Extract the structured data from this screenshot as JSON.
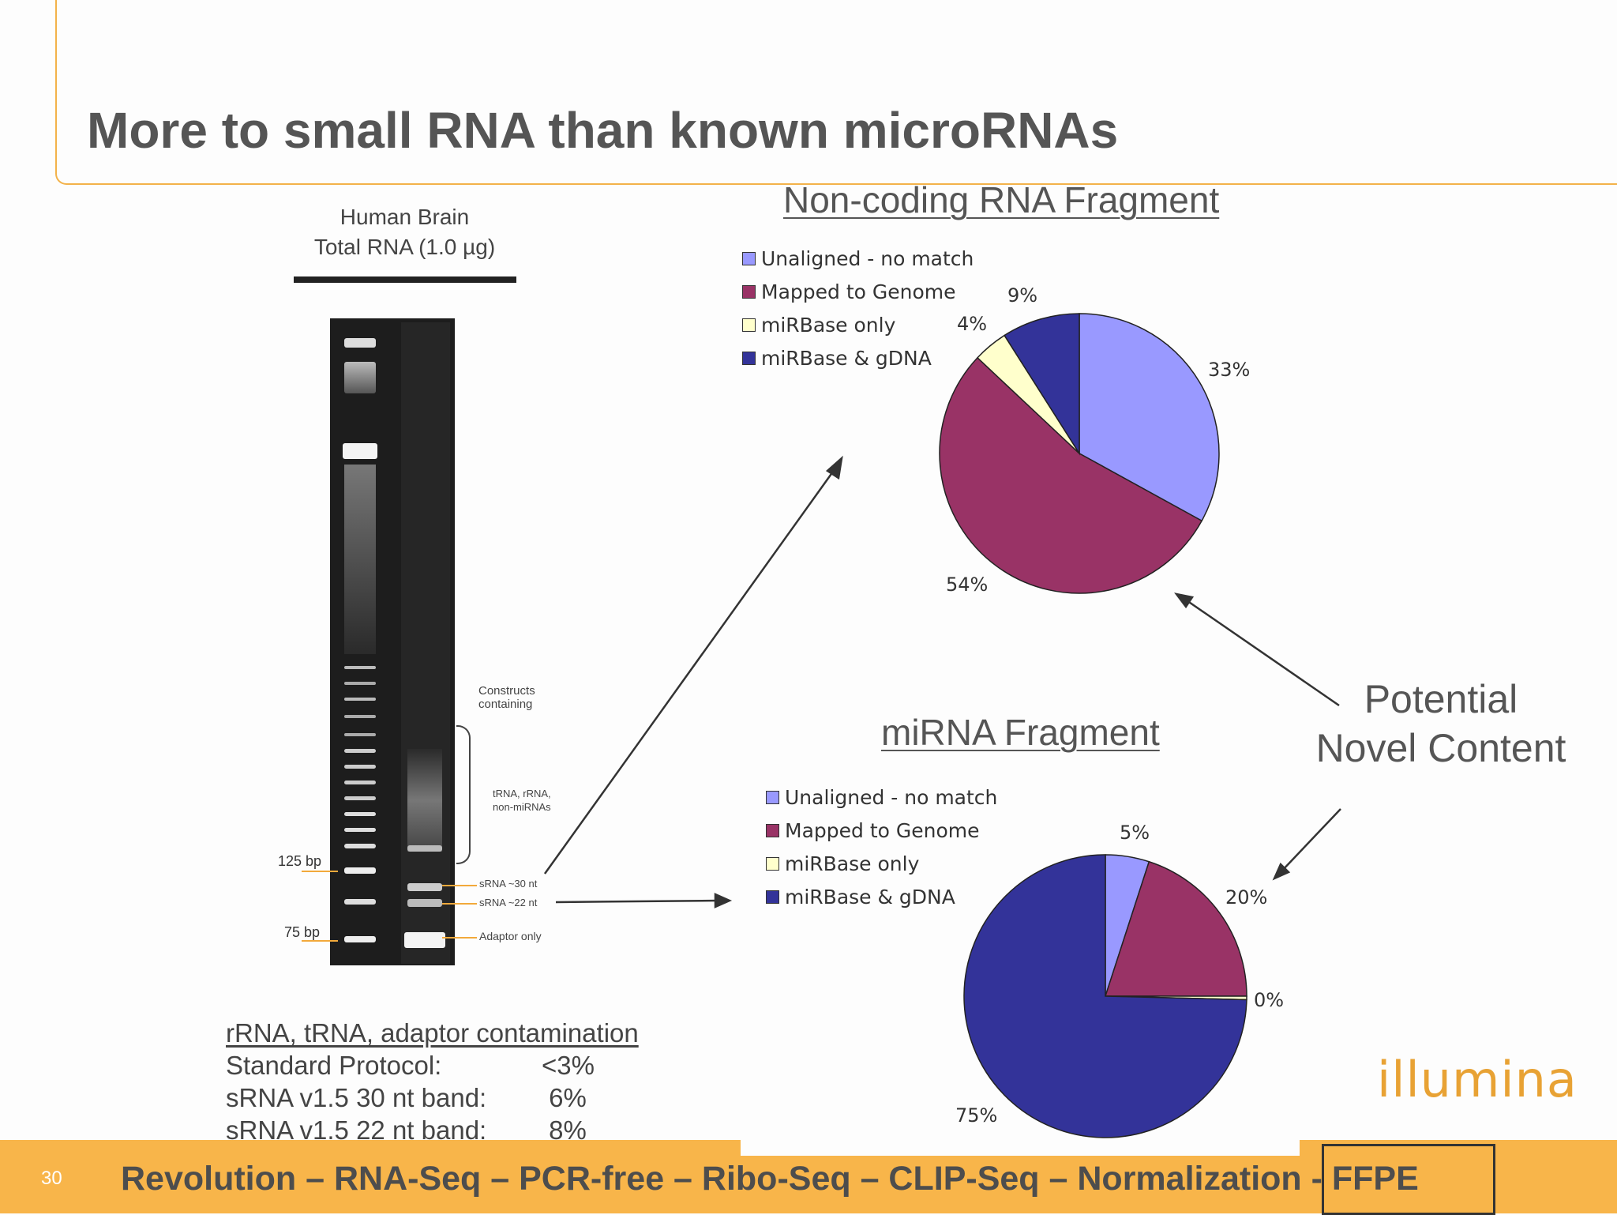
{
  "title": "More to small RNA than known microRNAs",
  "gel": {
    "header_line1": "Human Brain",
    "header_line2": "Total RNA (1.0 µg)",
    "label_constructs": "Constructs containing",
    "label_trna": "tRNA, rRNA, non-miRNAs",
    "label_30nt": "sRNA ~30 nt",
    "label_22nt": "sRNA ~22 nt",
    "label_adaptor": "Adaptor only",
    "marker_125": "125 bp",
    "marker_75": "75 bp"
  },
  "contamination": {
    "title": "rRNA, tRNA, adaptor contamination",
    "rows": [
      {
        "label": "Standard Protocol:",
        "value": "<3%"
      },
      {
        "label": "sRNA v1.5 30 nt band:",
        "value": " 6%"
      },
      {
        "label": "sRNA v1.5 22 nt band:",
        "value": " 8%"
      }
    ]
  },
  "annotation": {
    "line1": "Potential",
    "line2": "Novel Content"
  },
  "logo_text": "illumina",
  "footer": {
    "slide_number": "30",
    "tagline": "Revolution – RNA-Seq – PCR-free – Ribo-Seq – CLIP-Seq – Normalization - FFPE"
  },
  "colors": {
    "unaligned": "#9999ff",
    "mapped": "#993366",
    "mirbase_only": "#ffffcc",
    "mirbase_gdna": "#333399",
    "accent": "#f8b54a"
  },
  "chart_data": [
    {
      "type": "pie",
      "title": "Non-coding RNA Fragment",
      "categories": [
        "Unaligned - no match",
        "Mapped to Genome",
        "miRBase only",
        "miRBase & gDNA"
      ],
      "values": [
        33,
        54,
        4,
        9
      ],
      "labels": [
        "33%",
        "54%",
        "4%",
        "9%"
      ],
      "legend": "top-left"
    },
    {
      "type": "pie",
      "title": "miRNA Fragment",
      "categories": [
        "Unaligned - no match",
        "Mapped to Genome",
        "miRBase only",
        "miRBase & gDNA"
      ],
      "values": [
        5,
        20,
        0.4,
        74.6
      ],
      "labels": [
        "5%",
        "20%",
        "0%",
        "75%"
      ],
      "legend": "top-left"
    }
  ]
}
